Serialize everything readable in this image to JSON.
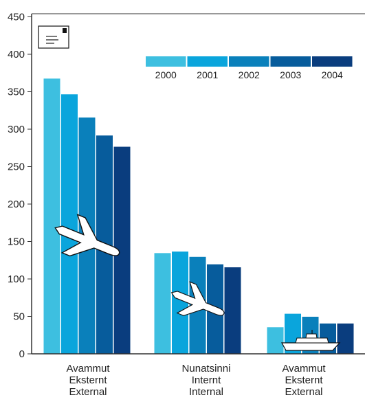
{
  "chart_data": {
    "type": "bar",
    "categories": [
      {
        "lines": [
          "Avammut",
          "Eksternt",
          "External"
        ],
        "icon": "airplane-icon"
      },
      {
        "lines": [
          "Nunatsinni",
          "Internt",
          "Internal"
        ],
        "icon": "airplane-icon"
      },
      {
        "lines": [
          "Avammut",
          "Eksternt",
          "External"
        ],
        "icon": "ship-icon"
      }
    ],
    "series": [
      {
        "name": "2000",
        "values": [
          368,
          135,
          36
        ],
        "color": "#3dbfe0"
      },
      {
        "name": "2001",
        "values": [
          347,
          137,
          54
        ],
        "color": "#0aa5dc"
      },
      {
        "name": "2002",
        "values": [
          316,
          130,
          50
        ],
        "color": "#0a80bb"
      },
      {
        "name": "2003",
        "values": [
          292,
          120,
          41
        ],
        "color": "#075c9c"
      },
      {
        "name": "2004",
        "values": [
          277,
          116,
          41
        ],
        "color": "#0a3d7e"
      }
    ],
    "yticks": [
      0,
      50,
      100,
      150,
      200,
      250,
      300,
      350,
      400,
      450
    ],
    "ylim": [
      0,
      450
    ],
    "legend_position": "top-right",
    "corner_icon": "envelope-icon"
  }
}
